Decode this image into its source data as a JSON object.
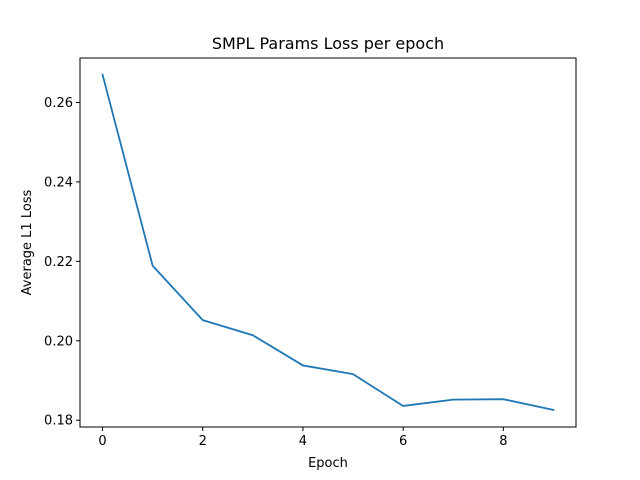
{
  "chart_data": {
    "type": "line",
    "title": "SMPL Params Loss per epoch",
    "xlabel": "Epoch",
    "ylabel": "Average L1 Loss",
    "xlim": [
      -0.45,
      9.45
    ],
    "ylim": [
      0.1783,
      0.2712
    ],
    "xticks": [
      0,
      2,
      4,
      6,
      8
    ],
    "xtick_labels": [
      "0",
      "2",
      "4",
      "6",
      "8"
    ],
    "yticks": [
      0.18,
      0.2,
      0.22,
      0.24,
      0.26
    ],
    "ytick_labels": [
      "0.18",
      "0.20",
      "0.22",
      "0.24",
      "0.26"
    ],
    "grid": false,
    "series": [
      {
        "color": "#1f77b4",
        "x": [
          0,
          1,
          2,
          3,
          4,
          5,
          6,
          7,
          8,
          9
        ],
        "y": [
          0.267,
          0.2189,
          0.2052,
          0.2014,
          0.1938,
          0.1916,
          0.1836,
          0.1852,
          0.1853,
          0.1826
        ]
      }
    ]
  }
}
